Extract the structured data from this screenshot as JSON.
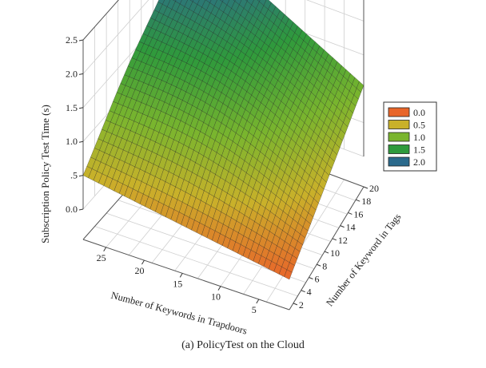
{
  "caption": "(a)  PolicyTest on the Cloud",
  "chart_data": {
    "type": "surface3d",
    "title": "",
    "zlabel": "Subscription Policy Test Time (s)",
    "xlabel": "Number of Keywords in Trapdoors",
    "ylabel": "Number of Keyword in Tags",
    "x_ticks": [
      25,
      20,
      15,
      10,
      5
    ],
    "y_ticks": [
      2,
      4,
      6,
      8,
      10,
      12,
      14,
      16,
      18,
      20
    ],
    "z_ticks": [
      "0.0",
      ".5",
      "1.0",
      "1.5",
      "2.0",
      "2.5"
    ],
    "x_range": [
      1,
      28
    ],
    "y_range": [
      1,
      20
    ],
    "z_range": [
      0,
      2.5
    ],
    "corner_values": [
      {
        "x": 1,
        "y": 1,
        "z": 0.0
      },
      {
        "x": 28,
        "y": 1,
        "z": 0.5
      },
      {
        "x": 1,
        "y": 20,
        "z": 1.05
      },
      {
        "x": 28,
        "y": 20,
        "z": 2.45
      }
    ],
    "legend": {
      "position": "right",
      "entries": [
        {
          "label": "0.0",
          "color": "#e8652a"
        },
        {
          "label": "0.5",
          "color": "#c9b12a"
        },
        {
          "label": "1.0",
          "color": "#7ab52e"
        },
        {
          "label": "1.5",
          "color": "#2f9a3c"
        },
        {
          "label": "2.0",
          "color": "#2b6a8c"
        }
      ]
    },
    "grid": true
  }
}
